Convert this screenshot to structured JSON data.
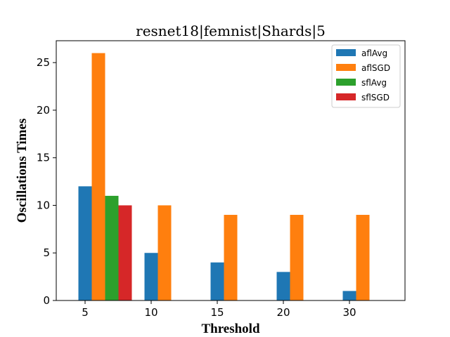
{
  "chart_data": {
    "type": "bar",
    "title": "resnet18|femnist|Shards|5",
    "xlabel": "Threshold",
    "ylabel": "Oscillations Times",
    "categories": [
      "5",
      "10",
      "15",
      "20",
      "30"
    ],
    "ylim": [
      0,
      27.3
    ],
    "yticks": [
      0,
      5,
      10,
      15,
      20,
      25
    ],
    "grid": false,
    "legend_position": "top-right",
    "series": [
      {
        "name": "aflAvg",
        "color": "#1f77b4",
        "values": [
          12,
          5,
          4,
          3,
          1
        ]
      },
      {
        "name": "aflSGD",
        "color": "#ff7f0e",
        "values": [
          26,
          10,
          9,
          9,
          9
        ]
      },
      {
        "name": "sflAvg",
        "color": "#2ca02c",
        "values": [
          11,
          null,
          null,
          null,
          null
        ]
      },
      {
        "name": "sflSGD",
        "color": "#d62728",
        "values": [
          10,
          null,
          null,
          null,
          null
        ]
      }
    ]
  }
}
